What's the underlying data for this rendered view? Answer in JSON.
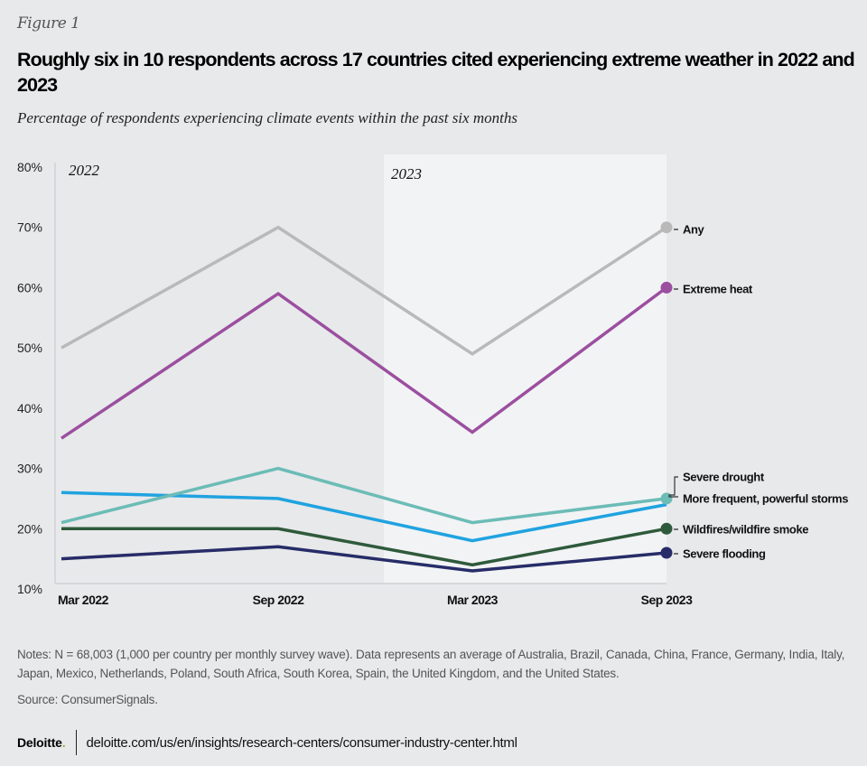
{
  "figure_label": "Figure 1",
  "title": "Roughly six in 10 respondents across 17 countries cited experiencing extreme weather in 2022 and 2023",
  "subtitle": "Percentage of respondents experiencing climate events within the past six months",
  "notes": "Notes: N = 68,003 (1,000 per country per monthly survey wave). Data represents an average of Australia, Brazil, Canada, China, France, Germany, India, Italy, Japan, Mexico, Netherlands, Poland, South Africa, South Korea, Spain, the United Kingdom, and the United States.",
  "source": "Source: ConsumerSignals.",
  "footer": {
    "logo": "Deloitte",
    "logo_dot": ".",
    "url": "deloitte.com/us/en/insights/research-centers/consumer-industry-center.html"
  },
  "colors": {
    "background": "#e8e9eb",
    "highlight_band": "#f2f3f5",
    "any": "#b9b9b9",
    "extreme_heat": "#9b4f9f",
    "severe_drought": "#6cbcb6",
    "storms": "#20a3e0",
    "wildfires": "#2e5a3b",
    "flooding": "#272c68"
  },
  "chart_data": {
    "type": "line",
    "title": "Roughly six in 10 respondents across 17 countries cited experiencing extreme weather in 2022 and 2023",
    "subtitle": "Percentage of respondents experiencing climate events within the past six months",
    "xlabel": "",
    "ylabel": "",
    "categories": [
      "Mar 2022",
      "Sep 2022",
      "Mar 2023",
      "Sep 2023"
    ],
    "ylim": [
      10,
      80
    ],
    "yticks": [
      10,
      20,
      30,
      40,
      50,
      60,
      70,
      80
    ],
    "ytick_labels": [
      "10%",
      "20%",
      "30%",
      "40%",
      "50%",
      "60%",
      "70%",
      "80%"
    ],
    "grid": false,
    "period_labels": [
      {
        "label": "2022",
        "from": "Mar 2022",
        "to": "Sep 2022",
        "highlighted": false
      },
      {
        "label": "2023",
        "from": "Mar 2023",
        "to": "Sep 2023",
        "highlighted": true
      }
    ],
    "legend": "direct-labels-right",
    "series": [
      {
        "name": "Any",
        "color_key": "any",
        "values": [
          50,
          70,
          49,
          70
        ]
      },
      {
        "name": "Extreme heat",
        "color_key": "extreme_heat",
        "values": [
          35,
          59,
          36,
          60
        ]
      },
      {
        "name": "Severe drought",
        "color_key": "severe_drought",
        "values": [
          21,
          30,
          21,
          25
        ]
      },
      {
        "name": "More frequent, powerful storms",
        "color_key": "storms",
        "values": [
          26,
          25,
          18,
          24
        ]
      },
      {
        "name": "Wildfires/wildfire smoke",
        "color_key": "wildfires",
        "values": [
          20,
          20,
          14,
          20
        ]
      },
      {
        "name": "Severe flooding",
        "color_key": "flooding",
        "values": [
          15,
          17,
          13,
          16
        ]
      }
    ]
  }
}
